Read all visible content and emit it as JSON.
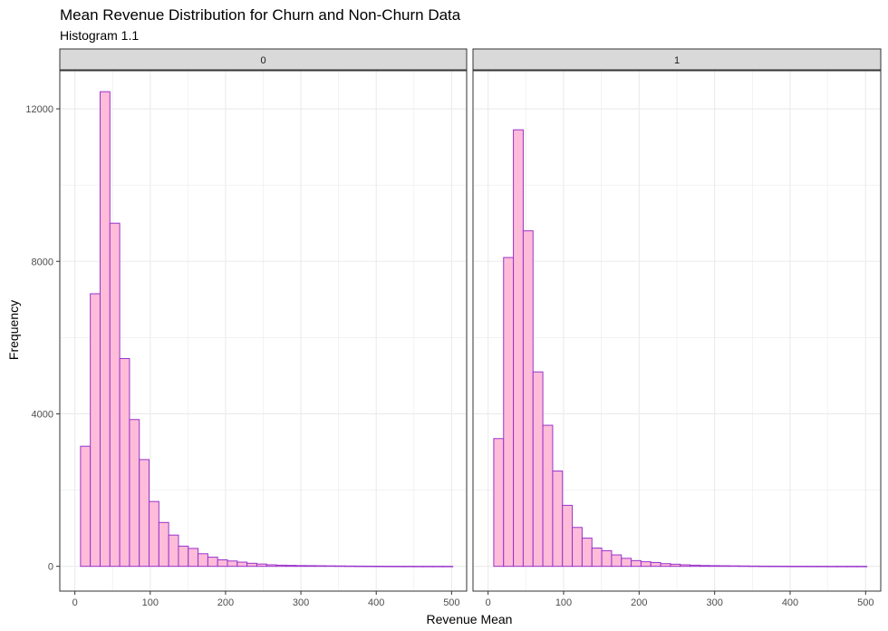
{
  "chart_data": {
    "type": "bar",
    "title": "Mean Revenue Distribution for Churn and Non-Churn Data",
    "subtitle": "Histogram 1.1",
    "xlabel": "Revenue Mean",
    "ylabel": "Frequency",
    "xlim": [
      -20,
      520
    ],
    "ylim": [
      -650,
      13000
    ],
    "x_ticks": [
      0,
      100,
      200,
      300,
      400,
      500
    ],
    "y_ticks": [
      0,
      4000,
      8000,
      12000
    ],
    "grid": true,
    "bin_width": 13,
    "bin_start": 7.5,
    "colors": {
      "fill": "#ffbcd9",
      "outline": "#9932cc",
      "strip": "#d9d9d9",
      "grid": "#ebebeb",
      "panel_border": "#333333"
    },
    "panels": [
      {
        "label": "0",
        "values": [
          3150,
          7150,
          12450,
          9000,
          5450,
          3850,
          2800,
          1700,
          1150,
          820,
          530,
          470,
          330,
          240,
          170,
          140,
          110,
          80,
          60,
          40,
          30,
          25,
          20,
          18,
          15,
          12,
          10,
          8,
          6,
          5,
          4,
          3,
          2,
          2,
          1,
          1,
          1,
          1
        ]
      },
      {
        "label": "1",
        "values": [
          3350,
          8100,
          11450,
          8800,
          5100,
          3700,
          2500,
          1600,
          1020,
          740,
          480,
          410,
          300,
          210,
          150,
          120,
          100,
          70,
          55,
          40,
          30,
          22,
          18,
          15,
          12,
          10,
          8,
          6,
          5,
          4,
          3,
          3,
          2,
          2,
          1,
          1,
          1,
          1
        ]
      }
    ]
  }
}
